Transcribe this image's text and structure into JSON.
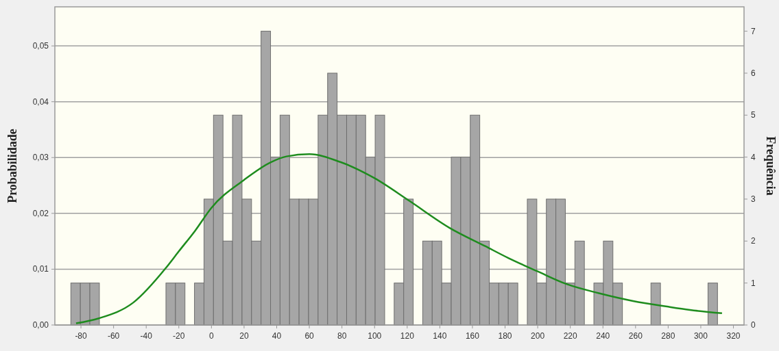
{
  "chart_data": {
    "type": "histogram",
    "ylabel": "Probabilidade",
    "y2label": "Frequência",
    "bins": [
      -86.2,
      -80.37,
      -74.54,
      -68.71,
      -62.88,
      -57.05,
      -51.22,
      -45.39,
      -39.56,
      -33.73,
      -27.9,
      -22.07,
      -16.24,
      -10.41,
      -4.58,
      1.25,
      7.08,
      12.91,
      18.74,
      24.57,
      30.4,
      36.23,
      42.06,
      47.89,
      53.72,
      59.55,
      65.38,
      71.21,
      77.04,
      82.87,
      88.7,
      94.53,
      100.36,
      106.19,
      112.02,
      117.85,
      123.68,
      129.51,
      135.34,
      141.17,
      147,
      152.83,
      158.66,
      164.49,
      170.32,
      176.15,
      181.98,
      187.81,
      193.64,
      199.47,
      205.3,
      211.13,
      216.96,
      222.79,
      228.62,
      234.45,
      240.28,
      246.11,
      251.94,
      257.77,
      263.6,
      269.43,
      275.26,
      281.09,
      286.92,
      292.75,
      298.58,
      304.41,
      310.24
    ],
    "series": [
      {
        "axis": "y2",
        "color": "#a6a6a6",
        "values": [
          1,
          1,
          1,
          0,
          0,
          0,
          0,
          0,
          0,
          0,
          1,
          1,
          0,
          1,
          3,
          5,
          2,
          5,
          3,
          2,
          7,
          4,
          5,
          3,
          3,
          3,
          5,
          6,
          5,
          5,
          5,
          4,
          5,
          0,
          1,
          3,
          0,
          2,
          2,
          1,
          4,
          4,
          5,
          2,
          1,
          1,
          1,
          0,
          3,
          1,
          3,
          3,
          1,
          2,
          0,
          1,
          2,
          1,
          0,
          0,
          0,
          1,
          0,
          0,
          0,
          0,
          0,
          1
        ]
      },
      {
        "type": "line",
        "color": "#1e8c1e",
        "x": [
          -83,
          -69,
          -48,
          -28,
          -20,
          -10,
          0,
          20,
          36,
          46,
          60,
          79,
          100,
          121,
          146,
          168,
          182,
          200,
          218,
          237.5,
          258.5,
          279.4,
          293.4,
          313
        ],
        "values": [
          0.0003,
          0.0012,
          0.004,
          0.0102,
          0.0132,
          0.0169,
          0.021,
          0.026,
          0.0291,
          0.0302,
          0.0306,
          0.0292,
          0.0263,
          0.0223,
          0.0174,
          0.0141,
          0.012,
          0.0096,
          0.0073,
          0.0057,
          0.0043,
          0.0033,
          0.0027,
          0.0021
        ]
      }
    ],
    "xlim": [
      -96,
      326.5
    ],
    "xticks": [
      -80,
      -60,
      -40,
      -20,
      0,
      20,
      40,
      60,
      80,
      100,
      120,
      140,
      160,
      180,
      200,
      220,
      240,
      260,
      280,
      300,
      320
    ],
    "ylim": [
      0,
      0.057
    ],
    "yticks": [
      {
        "value": 0,
        "label": "0,00"
      },
      {
        "value": 0.01,
        "label": "0,01"
      },
      {
        "value": 0.02,
        "label": "0,02"
      },
      {
        "value": 0.03,
        "label": "0,03"
      },
      {
        "value": 0.04,
        "label": "0,04"
      },
      {
        "value": 0.05,
        "label": "0,05"
      }
    ],
    "y2lim": [
      0,
      7.58
    ],
    "y2ticks": [
      0,
      1,
      2,
      3,
      4,
      5,
      6,
      7
    ],
    "grid": "y"
  }
}
